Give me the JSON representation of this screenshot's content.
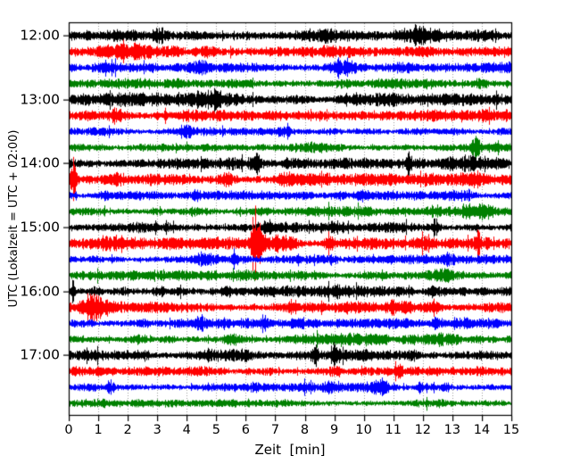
{
  "chart_data": {
    "type": "line",
    "subtype": "seismogram-drum-record",
    "title": "",
    "xlabel": "Zeit  [min]",
    "ylabel": "UTC (Lokalzeit = UTC + 02:00)",
    "x_range": [
      0,
      15
    ],
    "x_ticks": [
      "0",
      "1",
      "2",
      "3",
      "4",
      "5",
      "6",
      "7",
      "8",
      "9",
      "10",
      "11",
      "12",
      "13",
      "14",
      "15"
    ],
    "y_tick_labels": [
      "12:00",
      "13:00",
      "14:00",
      "15:00",
      "16:00",
      "17:00"
    ],
    "y_tick_rows": [
      0,
      4,
      8,
      12,
      16,
      20
    ],
    "minutes_per_row": 15,
    "grid": {
      "vertical": true,
      "horizontal": false,
      "style": "dotted",
      "color": "#9a9a9a"
    },
    "color_cycle": [
      "#000000",
      "#ff0000",
      "#0000ff",
      "#008000"
    ],
    "traces": [
      {
        "start": "12:00",
        "color": "#000000",
        "base_amp": 4.5,
        "events": [
          [
            2.0,
            0.3,
            0.5
          ],
          [
            3.05,
            0.15,
            1.2
          ],
          [
            8.6,
            0.3,
            0.5
          ],
          [
            11.8,
            0.6,
            0.5
          ],
          [
            13.9,
            0.3,
            0.8
          ]
        ]
      },
      {
        "start": "12:15",
        "color": "#ff0000",
        "base_amp": 4.2,
        "events": [
          [
            1.9,
            0.5,
            0.5
          ],
          [
            9.3,
            0.5,
            0.5
          ],
          [
            13.5,
            0.4,
            0.4
          ]
        ]
      },
      {
        "start": "12:30",
        "color": "#0000ff",
        "base_amp": 3.8,
        "events": [
          [
            4.5,
            0.2,
            0.5
          ],
          [
            9.35,
            0.35,
            1.8
          ]
        ]
      },
      {
        "start": "12:45",
        "color": "#008000",
        "base_amp": 3.5,
        "events": [
          [
            9.35,
            0.3,
            0.6
          ],
          [
            13.9,
            0.15,
            0.8
          ]
        ]
      },
      {
        "start": "13:00",
        "color": "#000000",
        "base_amp": 4.5,
        "events": [
          [
            4.9,
            0.35,
            0.6
          ],
          [
            12.0,
            0.5,
            0.4
          ]
        ]
      },
      {
        "start": "13:15",
        "color": "#ff0000",
        "base_amp": 4.2,
        "events": [
          [
            1.7,
            0.2,
            0.8
          ],
          [
            8.4,
            0.6,
            0.5
          ]
        ]
      },
      {
        "start": "13:30",
        "color": "#0000ff",
        "base_amp": 2.8,
        "events": [
          [
            4.0,
            0.1,
            1.2
          ],
          [
            7.3,
            0.15,
            0.8
          ],
          [
            10.2,
            0.3,
            0.5
          ]
        ]
      },
      {
        "start": "13:45",
        "color": "#008000",
        "base_amp": 3.2,
        "events": [
          [
            8.5,
            1.0,
            0.3
          ],
          [
            13.8,
            0.1,
            1.4
          ]
        ]
      },
      {
        "start": "14:00",
        "color": "#000000",
        "base_amp": 4.0,
        "events": [
          [
            6.35,
            0.07,
            2.8
          ],
          [
            7.7,
            0.3,
            1.0
          ],
          [
            11.5,
            0.08,
            1.6
          ],
          [
            13.3,
            0.3,
            0.6
          ]
        ]
      },
      {
        "start": "14:15",
        "color": "#ff0000",
        "base_amp": 4.2,
        "events": [
          [
            0.15,
            0.06,
            3.2
          ],
          [
            1.6,
            0.25,
            0.9
          ],
          [
            5.4,
            0.2,
            0.7
          ],
          [
            7.3,
            0.25,
            0.8
          ],
          [
            13.9,
            0.2,
            0.6
          ]
        ]
      },
      {
        "start": "14:30",
        "color": "#0000ff",
        "base_amp": 3.0,
        "events": [
          [
            1.2,
            0.1,
            0.6
          ],
          [
            4.3,
            0.1,
            0.9
          ],
          [
            9.9,
            0.15,
            0.9
          ],
          [
            13.4,
            0.2,
            0.8
          ]
        ]
      },
      {
        "start": "14:45",
        "color": "#008000",
        "base_amp": 3.4,
        "events": [
          [
            4.2,
            0.25,
            1.1
          ],
          [
            12.5,
            0.2,
            0.5
          ],
          [
            13.8,
            0.4,
            0.8
          ]
        ]
      },
      {
        "start": "15:00",
        "color": "#000000",
        "base_amp": 3.4,
        "events": [
          [
            6.8,
            0.2,
            0.5
          ],
          [
            9.0,
            0.3,
            0.4
          ],
          [
            12.4,
            0.12,
            1.8
          ]
        ]
      },
      {
        "start": "15:15",
        "color": "#ff0000",
        "base_amp": 4.0,
        "events": [
          [
            1.5,
            0.5,
            0.4
          ],
          [
            6.35,
            0.12,
            4.5
          ],
          [
            7.2,
            0.3,
            0.9
          ],
          [
            8.85,
            0.1,
            1.4
          ],
          [
            12.2,
            0.15,
            0.8
          ],
          [
            13.85,
            0.07,
            1.8
          ]
        ]
      },
      {
        "start": "15:30",
        "color": "#0000ff",
        "base_amp": 3.0,
        "events": [
          [
            4.6,
            0.25,
            0.6
          ],
          [
            5.65,
            0.06,
            2.6
          ],
          [
            8.9,
            0.15,
            0.6
          ],
          [
            12.9,
            0.15,
            0.6
          ]
        ]
      },
      {
        "start": "15:45",
        "color": "#008000",
        "base_amp": 3.4,
        "events": [
          [
            10.1,
            0.25,
            0.5
          ],
          [
            12.85,
            0.3,
            0.5
          ]
        ]
      },
      {
        "start": "16:00",
        "color": "#000000",
        "base_amp": 3.6,
        "events": [
          [
            0.15,
            0.05,
            2.4
          ],
          [
            0.95,
            0.15,
            0.8
          ],
          [
            3.1,
            0.15,
            0.9
          ],
          [
            3.7,
            0.12,
            1.0
          ],
          [
            9.0,
            0.2,
            0.5
          ],
          [
            12.4,
            0.15,
            0.6
          ]
        ]
      },
      {
        "start": "16:15",
        "color": "#ff0000",
        "base_amp": 4.0,
        "events": [
          [
            0.85,
            0.25,
            1.5
          ],
          [
            7.6,
            0.1,
            0.8
          ],
          [
            11.0,
            0.1,
            0.7
          ],
          [
            12.4,
            0.12,
            1.0
          ]
        ]
      },
      {
        "start": "16:30",
        "color": "#0000ff",
        "base_amp": 3.4,
        "events": [
          [
            4.5,
            0.15,
            0.8
          ],
          [
            5.3,
            0.15,
            0.6
          ],
          [
            6.6,
            0.12,
            0.9
          ],
          [
            12.4,
            0.08,
            1.6
          ],
          [
            13.2,
            0.4,
            0.7
          ]
        ]
      },
      {
        "start": "16:45",
        "color": "#008000",
        "base_amp": 3.6,
        "events": [
          [
            2.4,
            0.2,
            0.7
          ],
          [
            3.3,
            0.2,
            0.6
          ],
          [
            5.6,
            0.3,
            0.6
          ],
          [
            10.2,
            0.4,
            0.6
          ],
          [
            12.7,
            0.4,
            0.6
          ]
        ]
      },
      {
        "start": "17:00",
        "color": "#000000",
        "base_amp": 4.0,
        "events": [
          [
            2.6,
            0.1,
            0.8
          ],
          [
            8.3,
            0.1,
            0.8
          ],
          [
            9.0,
            0.1,
            1.0
          ],
          [
            11.6,
            0.15,
            0.6
          ]
        ]
      },
      {
        "start": "17:15",
        "color": "#ff0000",
        "base_amp": 3.2,
        "events": [
          [
            6.3,
            0.3,
            0.4
          ],
          [
            9.0,
            0.12,
            0.9
          ],
          [
            11.2,
            0.1,
            0.8
          ]
        ]
      },
      {
        "start": "17:30",
        "color": "#0000ff",
        "base_amp": 3.2,
        "events": [
          [
            1.4,
            0.08,
            1.2
          ],
          [
            6.4,
            0.15,
            0.7
          ],
          [
            8.8,
            0.1,
            0.8
          ],
          [
            10.6,
            0.25,
            0.9
          ],
          [
            11.9,
            0.08,
            1.5
          ],
          [
            12.8,
            0.1,
            0.9
          ]
        ]
      },
      {
        "start": "17:45",
        "color": "#008000",
        "base_amp": 3.0,
        "events": [
          [
            6.2,
            0.3,
            0.6
          ],
          [
            7.2,
            0.2,
            0.5
          ],
          [
            12.3,
            0.4,
            0.7
          ]
        ]
      }
    ]
  }
}
